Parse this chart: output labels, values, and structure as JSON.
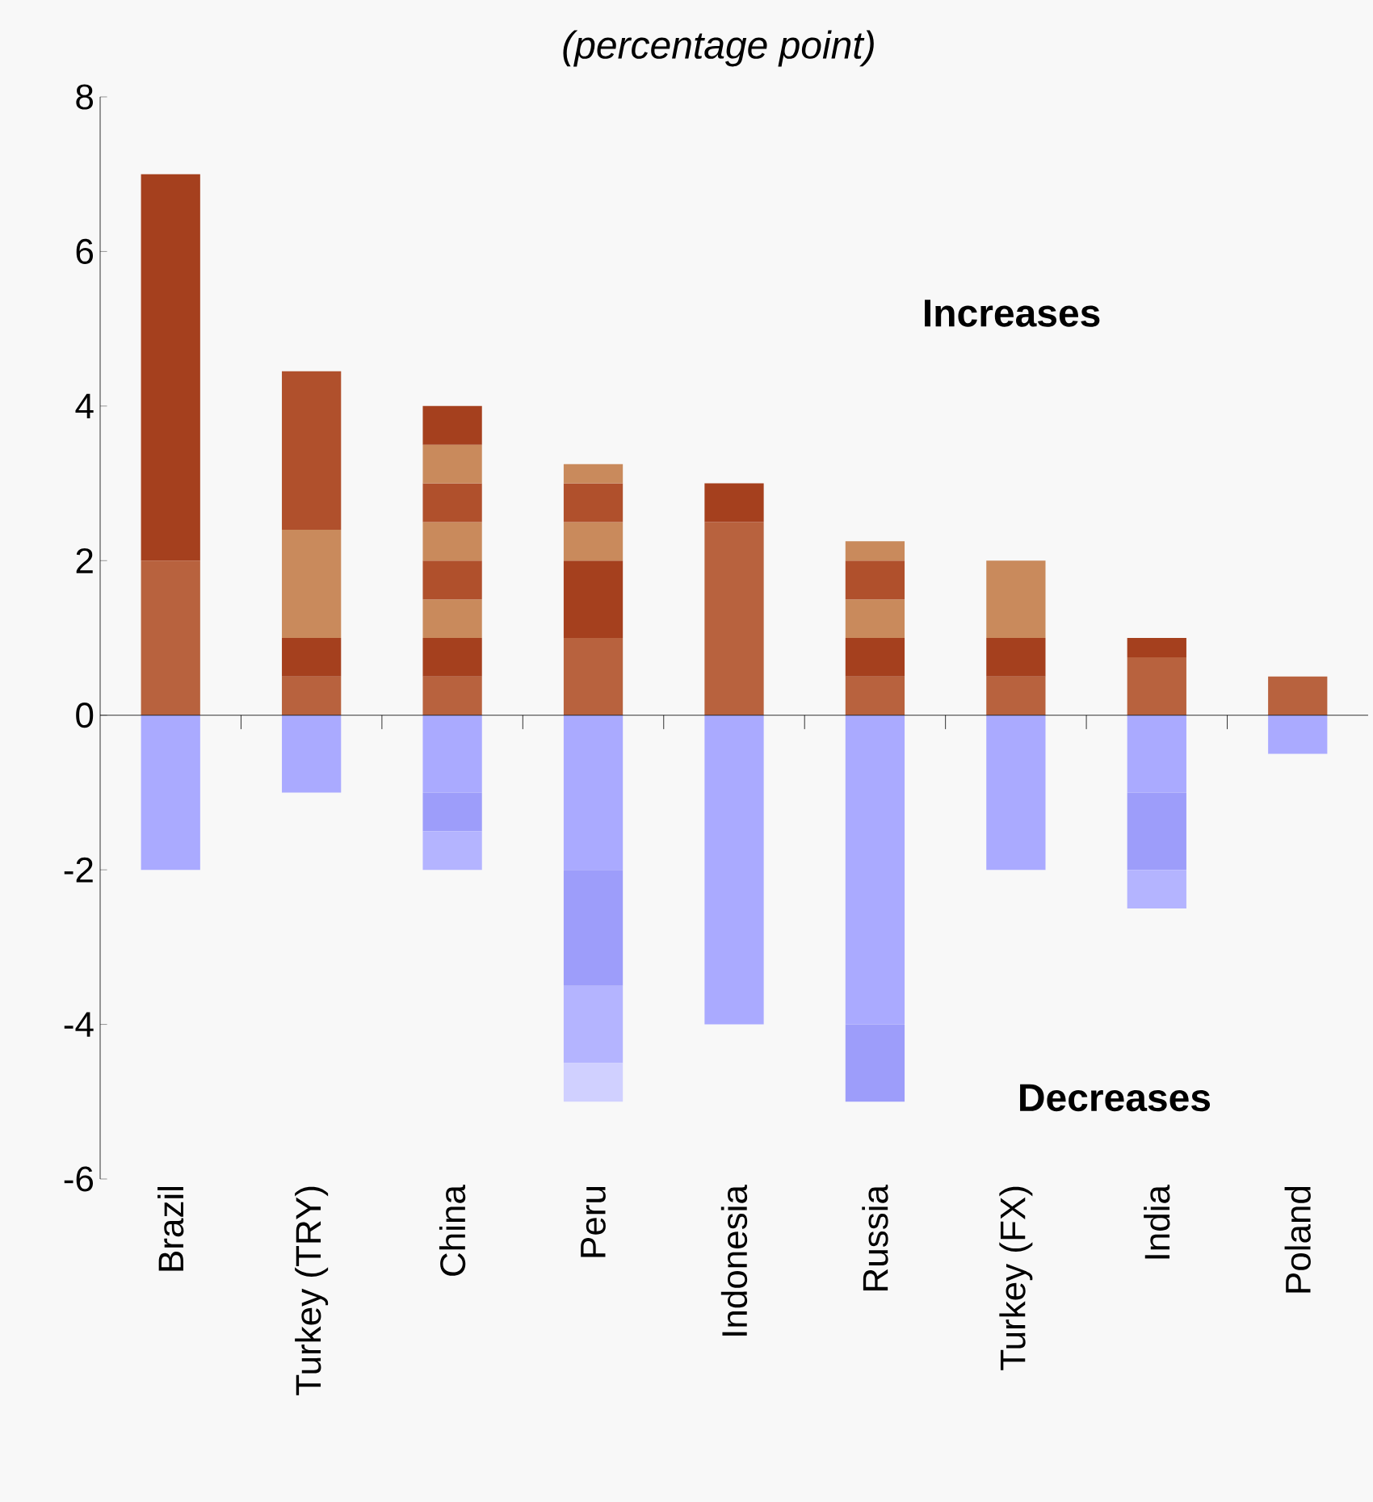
{
  "chart_data": {
    "type": "bar",
    "subtitle": "(percentage point)",
    "stacked": true,
    "categories": [
      "Brazil",
      "Turkey (TRY)",
      "China",
      "Peru",
      "Indonesia",
      "Russia",
      "Turkey (FX)",
      "India",
      "Poland"
    ],
    "ylim": [
      -6,
      8
    ],
    "yticks": [
      -6,
      -4,
      -2,
      0,
      2,
      4,
      6,
      8
    ],
    "annotations": [
      "Increases",
      "Decreases"
    ],
    "series": [
      {
        "color": "#b8623e",
        "values": [
          2,
          0.5,
          0.5,
          1,
          2.5,
          0.5,
          0.5,
          0.75,
          0.5
        ]
      },
      {
        "color": "#a5401e",
        "values": [
          5,
          0.5,
          0.5,
          1,
          0.5,
          0.5,
          0.5,
          0.25,
          null
        ]
      },
      {
        "color": "#c98a5c",
        "values": [
          null,
          1.4,
          0.5,
          0.5,
          null,
          0.5,
          1,
          null,
          null
        ]
      },
      {
        "color": "#b0502c",
        "values": [
          null,
          2.05,
          0.5,
          0.5,
          null,
          0.5,
          null,
          null,
          null
        ]
      },
      {
        "color": "#c98a5c",
        "values": [
          null,
          null,
          0.5,
          0.25,
          null,
          0.25,
          null,
          null,
          null
        ]
      },
      {
        "color": "#b0502c",
        "values": [
          null,
          null,
          0.5,
          null,
          null,
          null,
          null,
          null,
          null
        ]
      },
      {
        "color": "#c98a5c",
        "values": [
          null,
          null,
          0.5,
          null,
          null,
          null,
          null,
          null,
          null
        ]
      },
      {
        "color": "#a5401e",
        "values": [
          null,
          null,
          0.5,
          null,
          null,
          null,
          null,
          null,
          null
        ]
      },
      {
        "color": "#aaaaff",
        "values": [
          -2,
          -1,
          -1,
          -2,
          -4,
          -4,
          -2,
          -1,
          -0.5
        ]
      },
      {
        "color": "#9d9dfa",
        "values": [
          null,
          null,
          -0.5,
          -1.5,
          null,
          -1,
          null,
          -1,
          null
        ]
      },
      {
        "color": "#b4b4ff",
        "values": [
          null,
          null,
          -0.5,
          -1,
          null,
          null,
          null,
          -0.5,
          null
        ]
      },
      {
        "color": "#d0d0ff",
        "values": [
          null,
          null,
          null,
          -0.5,
          null,
          null,
          null,
          null,
          null
        ]
      }
    ]
  }
}
